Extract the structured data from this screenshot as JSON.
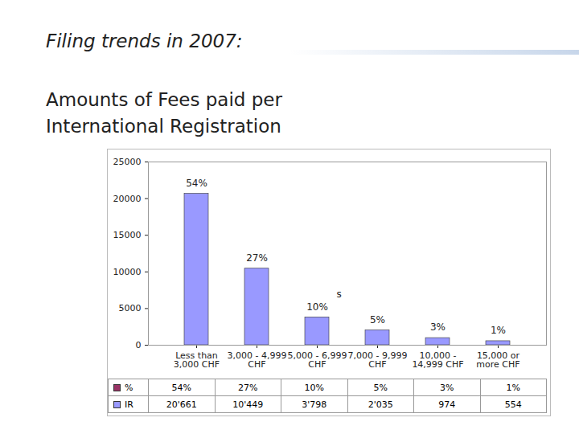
{
  "chart_data": {
    "type": "bar",
    "title": "Filing trends in 2007:",
    "subtitle": "Amounts of Fees paid per International Registration",
    "categories": [
      "Less than\n3,000 CHF",
      "3,000 - 4,999\nCHF",
      "5,000 - 6,999\nCHF",
      "7,000 - 9,999\nCHF",
      "10,000 -\n14,999 CHF",
      "15,000 or\nmore CHF"
    ],
    "series": [
      {
        "name": "%",
        "type": "text",
        "color": "#993366",
        "values": [
          54,
          27,
          10,
          5,
          3,
          1
        ],
        "value_labels": [
          "54%",
          "27%",
          "10%",
          "5%",
          "3%",
          "1%"
        ]
      },
      {
        "name": "IR",
        "type": "bar",
        "color": "#9999ff",
        "values": [
          20661,
          10449,
          3798,
          2035,
          974,
          554
        ],
        "value_labels": [
          "20'661",
          "10'449",
          "3'798",
          "2'035",
          "974",
          "554"
        ]
      }
    ],
    "annotation": "s",
    "ylim": [
      0,
      25000
    ],
    "yticks": [
      0,
      5000,
      10000,
      15000,
      20000,
      25000
    ],
    "grid": false,
    "data_labels": true
  }
}
